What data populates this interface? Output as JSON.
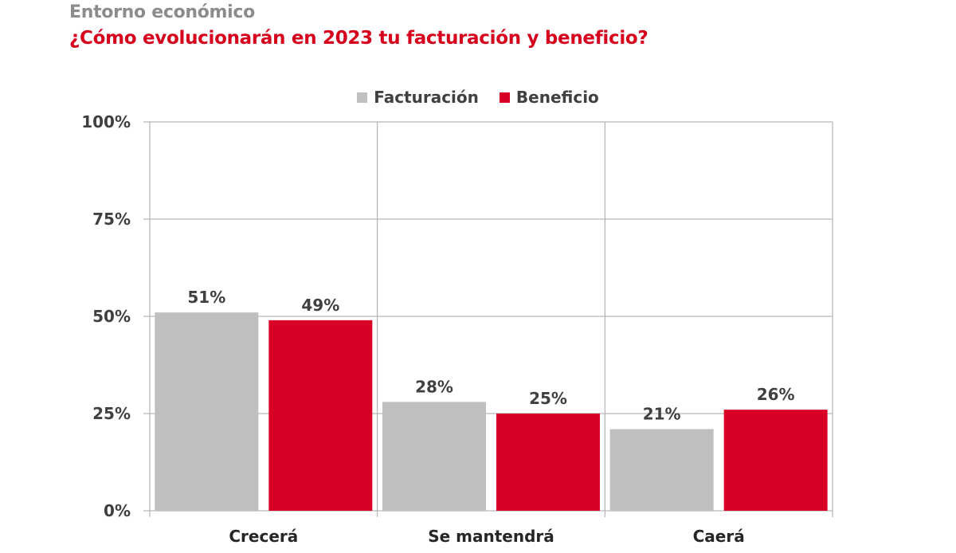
{
  "header": {
    "section": "Entorno económico",
    "question": "¿Cómo evolucionarán en 2023 tu facturación y beneficio?"
  },
  "chart_data": {
    "type": "bar",
    "categories": [
      "Crecerá",
      "Se mantendrá",
      "Caerá"
    ],
    "series": [
      {
        "name": "Facturación",
        "color": "#bfbfbf",
        "values": [
          51,
          28,
          21
        ],
        "labels": [
          "51%",
          "28%",
          "21%"
        ]
      },
      {
        "name": "Beneficio",
        "color": "#d90026",
        "values": [
          49,
          25,
          26
        ],
        "labels": [
          "49%",
          "25%",
          "26%"
        ]
      }
    ],
    "ylim": [
      0,
      100
    ],
    "yticks": [
      0,
      25,
      50,
      75,
      100
    ],
    "ytick_labels": [
      "0%",
      "25%",
      "50%",
      "75%",
      "100%"
    ],
    "grid": true,
    "legend_position": "top-center",
    "xlabel": "",
    "ylabel": ""
  }
}
